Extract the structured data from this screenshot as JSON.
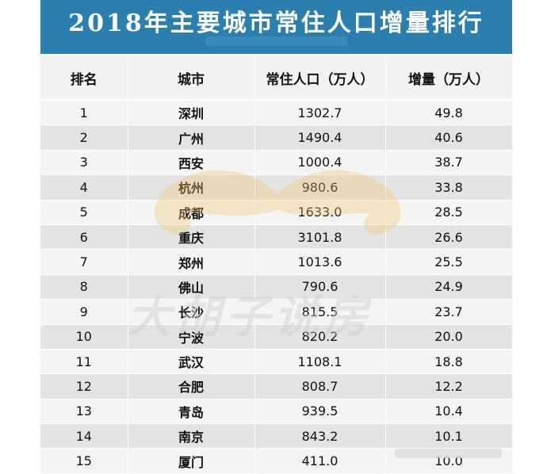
{
  "title": "2018年主要城市常住人口增量排行",
  "headers": [
    "排名",
    "城市",
    "常住人口（万人）",
    "增量（万人）"
  ],
  "rows": [
    {
      "rank": "1",
      "city": "深圳",
      "population": "1302.7",
      "increase": "49.8"
    },
    {
      "rank": "2",
      "city": "广州",
      "population": "1490.4",
      "increase": "40.6"
    },
    {
      "rank": "3",
      "city": "西安",
      "population": "1000.4",
      "increase": "38.7"
    },
    {
      "rank": "4",
      "city": "杭州",
      "population": "980.6",
      "increase": "33.8"
    },
    {
      "rank": "5",
      "city": "成都",
      "population": "1633.0",
      "increase": "28.5"
    },
    {
      "rank": "6",
      "city": "重庆",
      "population": "3101.8",
      "increase": "26.6"
    },
    {
      "rank": "7",
      "city": "郑州",
      "population": "1013.6",
      "increase": "25.5"
    },
    {
      "rank": "8",
      "city": "佛山",
      "population": "790.6",
      "increase": "24.9"
    },
    {
      "rank": "9",
      "city": "长沙",
      "population": "815.5",
      "increase": "23.7"
    },
    {
      "rank": "10",
      "city": "宁波",
      "population": "820.2",
      "increase": "20.0"
    },
    {
      "rank": "11",
      "city": "武汉",
      "population": "1108.1",
      "increase": "18.8"
    },
    {
      "rank": "12",
      "city": "合肥",
      "population": "808.7",
      "increase": "12.2"
    },
    {
      "rank": "13",
      "city": "青岛",
      "population": "939.5",
      "increase": "10.4"
    },
    {
      "rank": "14",
      "city": "南京",
      "population": "843.2",
      "increase": "10.1"
    },
    {
      "rank": "15",
      "city": "厦门",
      "population": "411.0",
      "increase": "10.0"
    }
  ],
  "watermark": "大胡子说房",
  "colors": {
    "title_bg": "#2a7fae",
    "row_odd": "#f4f4f4",
    "row_even": "#e3e3e3",
    "watermark": "#f0c870"
  }
}
